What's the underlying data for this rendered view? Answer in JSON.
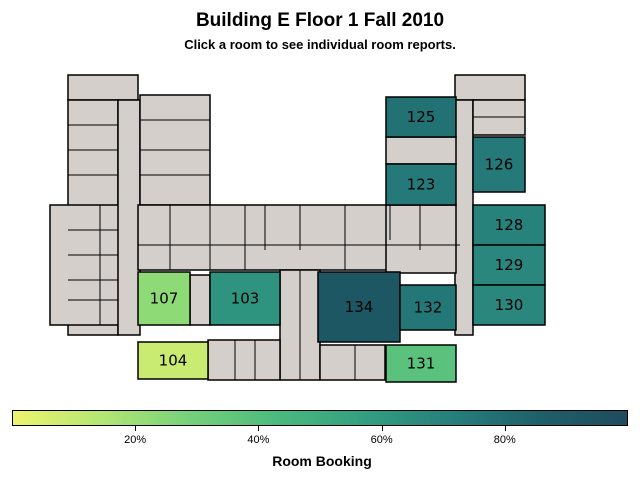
{
  "header": {
    "title": "Building E Floor 1 Fall 2010",
    "subtitle": "Click a room to see individual room reports."
  },
  "colors": {
    "gradient": [
      "#eef46e",
      "#b4e673",
      "#76d27a",
      "#4cba7e",
      "#339f80",
      "#267f7c",
      "#1e6069",
      "#1f4b5e"
    ],
    "unbooked_room": "#d5cfcb",
    "wall_outline": "#000000"
  },
  "rooms": [
    {
      "id": "125",
      "label": "125",
      "booking": 0.78
    },
    {
      "id": "123",
      "label": "123",
      "booking": 0.74
    },
    {
      "id": "126",
      "label": "126",
      "booking": 0.74
    },
    {
      "id": "128",
      "label": "128",
      "booking": 0.7
    },
    {
      "id": "129",
      "label": "129",
      "booking": 0.68
    },
    {
      "id": "130",
      "label": "130",
      "booking": 0.68
    },
    {
      "id": "107",
      "label": "107",
      "booking": 0.23
    },
    {
      "id": "103",
      "label": "103",
      "booking": 0.62
    },
    {
      "id": "134",
      "label": "134",
      "booking": 0.92
    },
    {
      "id": "132",
      "label": "132",
      "booking": 0.75
    },
    {
      "id": "104",
      "label": "104",
      "booking": 0.09
    },
    {
      "id": "131",
      "label": "131",
      "booking": 0.38
    }
  ],
  "legend": {
    "title": "Room Booking",
    "ticks": [
      "20%",
      "40%",
      "60%",
      "80%"
    ],
    "tick_values": [
      0.2,
      0.4,
      0.6,
      0.8
    ]
  }
}
